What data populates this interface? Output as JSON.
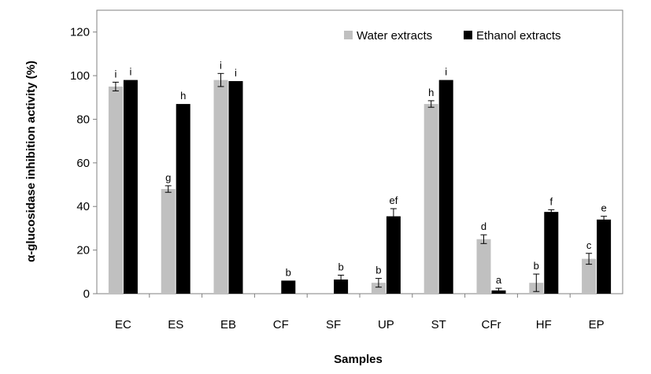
{
  "chart_data": {
    "type": "bar",
    "xlabel": "Samples",
    "ylabel": "α-glucosidase  inhibition activity (%)",
    "ylim": [
      0,
      130
    ],
    "yticks": [
      0,
      20,
      40,
      60,
      80,
      100,
      120
    ],
    "categories": [
      "EC",
      "ES",
      "EB",
      "CF",
      "SF",
      "UP",
      "ST",
      "CFr",
      "HF",
      "EP"
    ],
    "legend_position": "top-right",
    "series": [
      {
        "name": "Water extracts",
        "color": "#c0c0c0",
        "values": [
          95,
          48,
          98,
          null,
          null,
          5,
          87,
          25,
          5,
          16
        ],
        "errors": [
          2,
          1.5,
          3,
          null,
          null,
          2,
          1.5,
          2,
          4,
          2.5
        ],
        "labels": [
          "i",
          "g",
          "i",
          "",
          "",
          "b",
          "h",
          "d",
          "b",
          "c"
        ]
      },
      {
        "name": "Ethanol extracts",
        "color": "#000000",
        "values": [
          98,
          87,
          97.5,
          6,
          6.5,
          35.5,
          98,
          1.5,
          37.5,
          34
        ],
        "errors": [
          0,
          0,
          0,
          0,
          2,
          3.5,
          0,
          1,
          1,
          1.5
        ],
        "labels": [
          "i",
          "h",
          "i",
          "b",
          "b",
          "ef",
          "i",
          "a",
          "f",
          "e"
        ]
      }
    ]
  }
}
